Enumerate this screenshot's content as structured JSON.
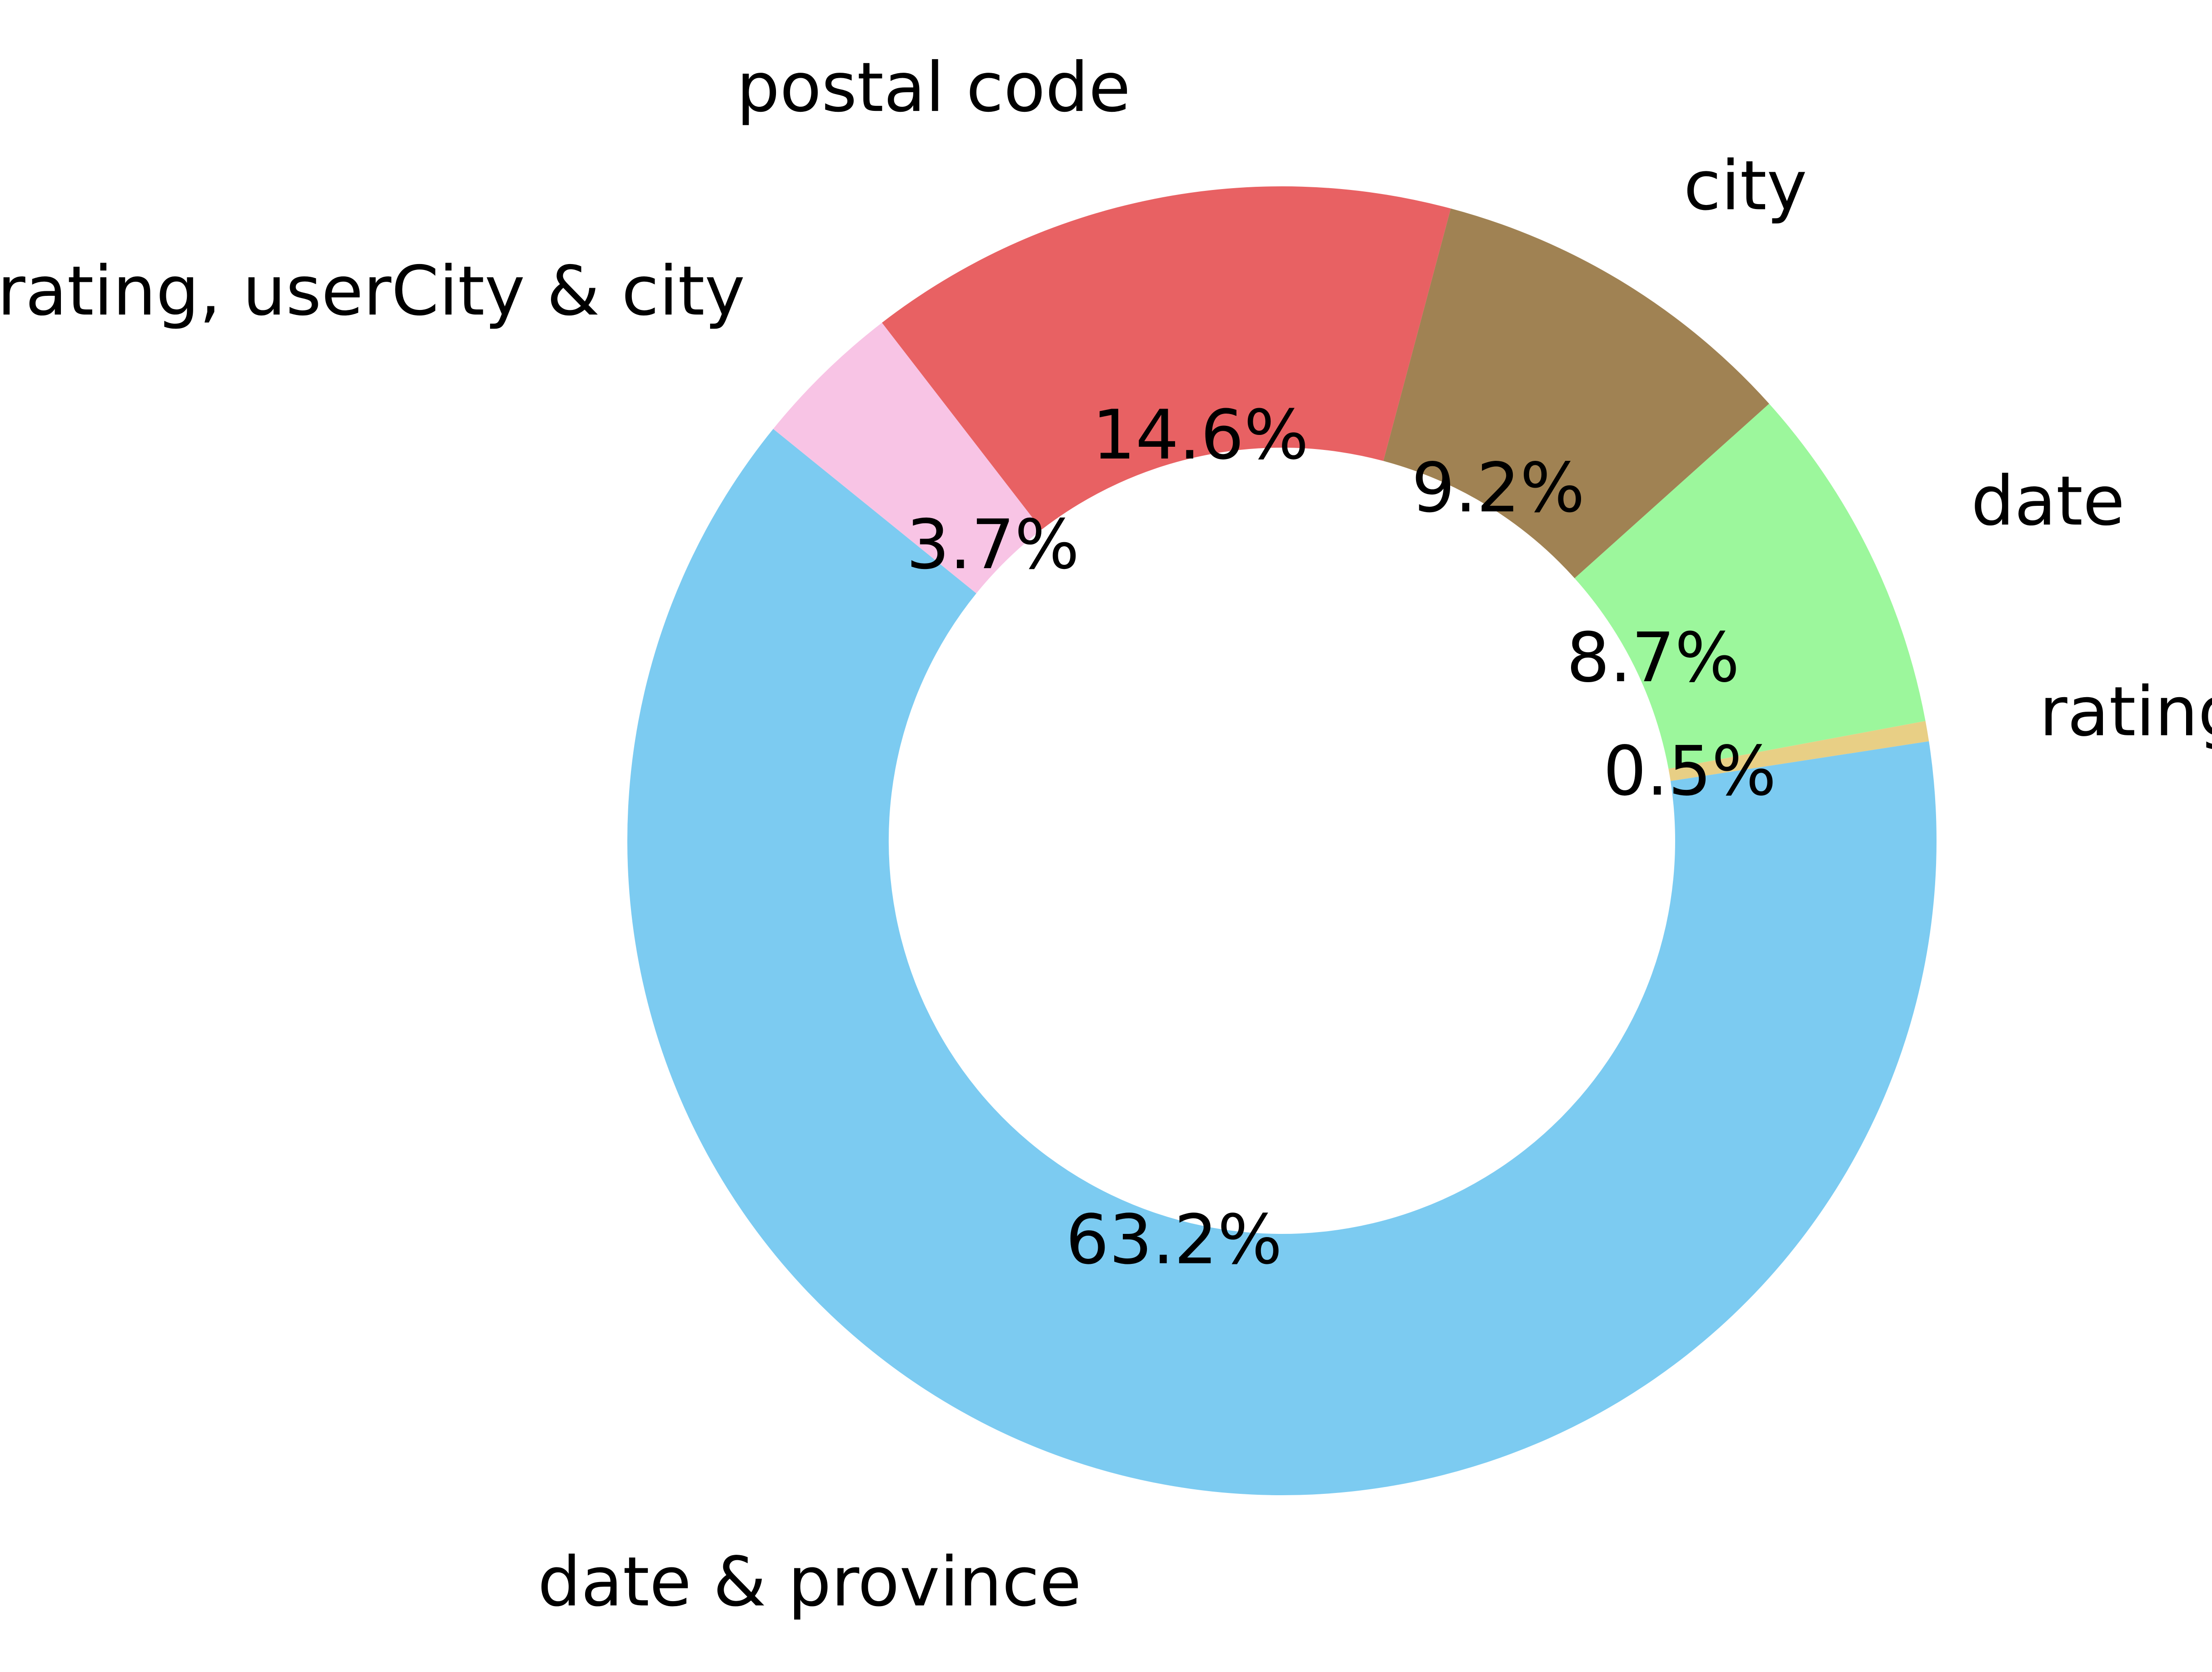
{
  "chart_data": {
    "type": "pie",
    "donut": true,
    "start_angle_deg": 141,
    "direction": "counterclockwise",
    "slices": [
      {
        "label": "date & province",
        "percent": 63.2,
        "percent_label": "63.2%",
        "color": "#7ccbf1"
      },
      {
        "label": "rating",
        "percent": 0.5,
        "percent_label": "0.5%",
        "color": "#e8cf85"
      },
      {
        "label": "date",
        "percent": 8.7,
        "percent_label": "8.7%",
        "color": "#9cf79c"
      },
      {
        "label": "city",
        "percent": 9.2,
        "percent_label": "9.2%",
        "color": "#a08253"
      },
      {
        "label": "postal code",
        "percent": 14.6,
        "percent_label": "14.6%",
        "color": "#e86163"
      },
      {
        "label": "rating, userCity & city",
        "percent": 3.7,
        "percent_label": "3.7%",
        "color": "#f8c4e5"
      }
    ]
  }
}
